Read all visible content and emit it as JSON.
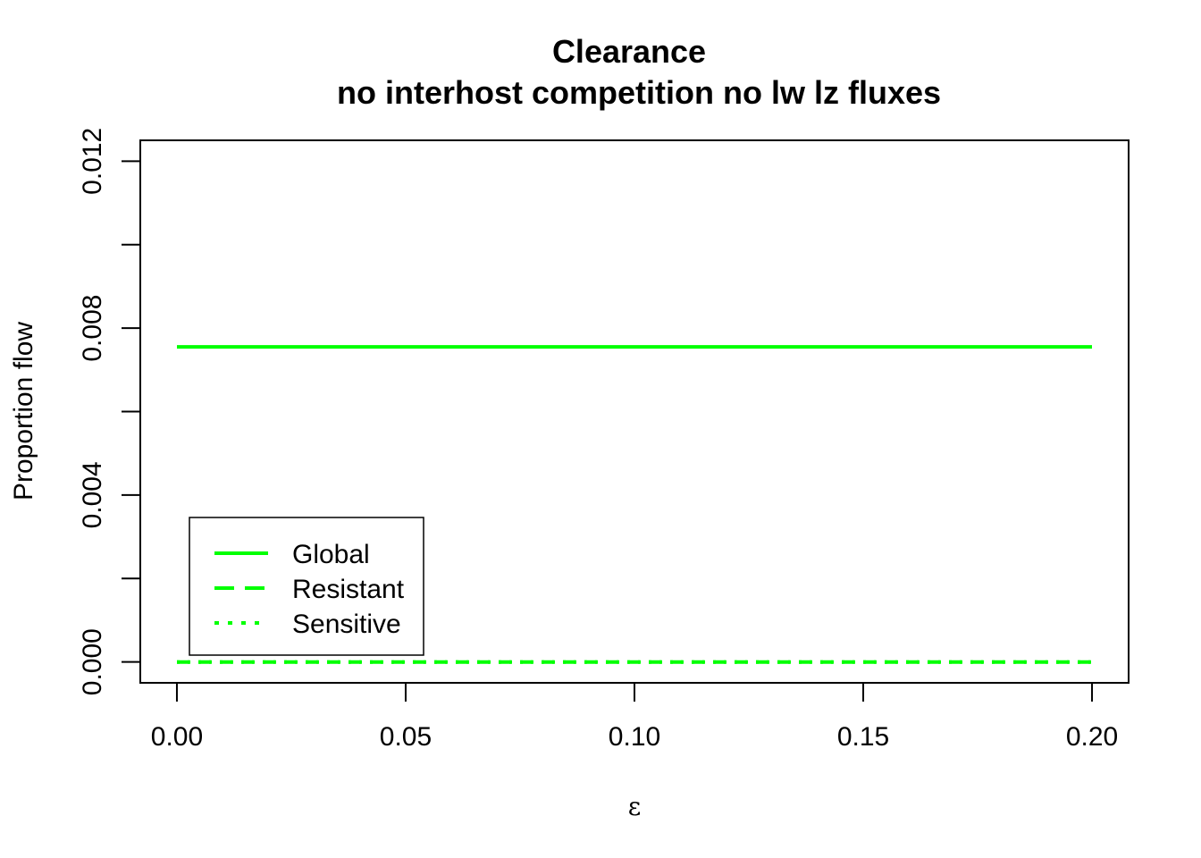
{
  "chart_data": {
    "type": "line",
    "title": "Clearance",
    "subtitle": "no interhost competition no lw lz fluxes",
    "xlabel": "ε",
    "ylabel": "Proportion flow",
    "xlim": [
      -0.008,
      0.208
    ],
    "ylim": [
      -0.0005,
      0.0125
    ],
    "x_ticks": [
      0.0,
      0.05,
      0.1,
      0.15,
      0.2
    ],
    "x_tick_labels": [
      "0.00",
      "0.05",
      "0.10",
      "0.15",
      "0.20"
    ],
    "y_ticks": [
      0.0,
      0.002,
      0.004,
      0.006,
      0.008,
      0.01,
      0.012
    ],
    "y_tick_labels": [
      "0.000",
      "",
      "0.004",
      "",
      "0.008",
      "",
      "0.012"
    ],
    "grid": false,
    "legend_position": "bottom-left",
    "series": [
      {
        "name": "Global",
        "color": "#00ff00",
        "style": "solid",
        "x": [
          0.0,
          0.05,
          0.1,
          0.15,
          0.2
        ],
        "y": [
          0.00755,
          0.00755,
          0.00755,
          0.00755,
          0.00755
        ]
      },
      {
        "name": "Resistant",
        "color": "#00ff00",
        "style": "dashed",
        "x": [
          0.0,
          0.05,
          0.1,
          0.15,
          0.2
        ],
        "y": [
          0.0,
          0.0,
          0.0,
          0.0,
          0.0
        ]
      },
      {
        "name": "Sensitive",
        "color": "#00ff00",
        "style": "dotted",
        "x": [
          0.0,
          0.05,
          0.1,
          0.15,
          0.2
        ],
        "y": [
          0.0,
          0.0,
          0.0,
          0.0,
          0.0
        ]
      }
    ]
  }
}
